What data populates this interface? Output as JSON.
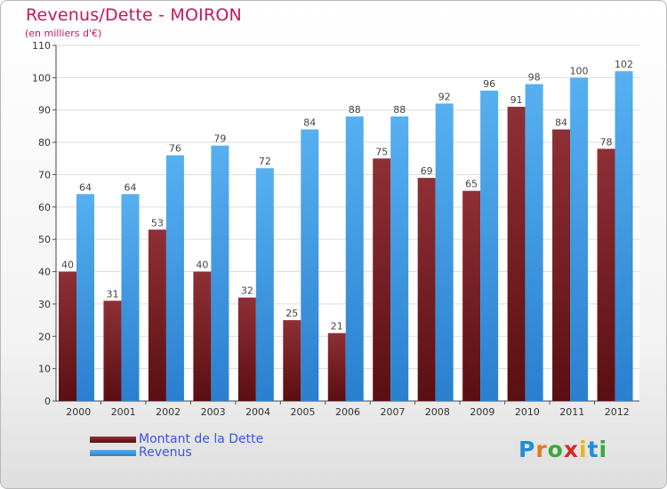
{
  "chart_data": {
    "type": "bar",
    "title": "Revenus/Dette - MOIRON",
    "subtitle": "(en milliers d'€)",
    "categories": [
      "2000",
      "2001",
      "2002",
      "2003",
      "2004",
      "2005",
      "2006",
      "2007",
      "2008",
      "2009",
      "2010",
      "2011",
      "2012"
    ],
    "series": [
      {
        "name": "Montant de la Dette",
        "color": "#7a1c20",
        "values": [
          40,
          31,
          53,
          40,
          32,
          25,
          21,
          75,
          69,
          65,
          91,
          84,
          78
        ]
      },
      {
        "name": "Revenus",
        "color": "#3d9ee6",
        "values": [
          64,
          64,
          76,
          79,
          72,
          84,
          88,
          88,
          92,
          96,
          98,
          100,
          102
        ]
      }
    ],
    "ylim": [
      0,
      110
    ],
    "yticks": [
      0,
      10,
      20,
      30,
      40,
      50,
      60,
      70,
      80,
      90,
      100,
      110
    ],
    "grid": true,
    "legend_position": "bottom-left"
  },
  "logo": {
    "letters": [
      "P",
      "r",
      "o",
      "x",
      "i",
      "t",
      "i"
    ],
    "colors": [
      "#1f8fd6",
      "#e8771c",
      "#3aa83a",
      "#d62a2a",
      "#e8b51c",
      "#1f8fd6",
      "#3aa83a"
    ]
  }
}
